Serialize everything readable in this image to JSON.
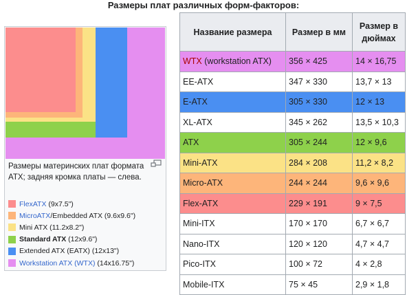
{
  "title": "Размеры плат различных форм-факторов:",
  "colors": {
    "wtx": "#e58ef0",
    "eatx": "#4a8ff2",
    "standard": "#8ed14b",
    "mini": "#fbe286",
    "micro": "#fdb57a",
    "flex": "#fc8d8d"
  },
  "infobox": {
    "caption": "Размеры материнских плат формата ATX; задняя кромка платы — слева.",
    "legend": [
      {
        "link": "FlexATX",
        "rest": " (9x7.5\")",
        "color": "#fc8d8d"
      },
      {
        "link": "MicroATX",
        "rest": "/Embedded ATX (9.6x9.6\")",
        "color": "#fdb57a"
      },
      {
        "link": "",
        "rest": "Mini ATX (11.2x8.2\")",
        "color": "#fbe286"
      },
      {
        "link": "",
        "bold": "Standard ATX",
        "rest": " (12x9.6\")",
        "color": "#8ed14b"
      },
      {
        "link": "",
        "rest": "Extended ATX (EATX) (12x13\")",
        "color": "#4a8ff2"
      },
      {
        "link": "Workstation ATX (WTX)",
        "rest": " (14x16.75\")",
        "color": "#e58ef0"
      }
    ]
  },
  "table": {
    "headers": [
      "Название размера",
      "Размер в мм",
      "Размер в дюймах"
    ],
    "rows": [
      {
        "name": "WTX",
        "name_suffix": " (workstation ATX)",
        "mm": "356 × 425",
        "in": "14 × 16,75",
        "bg": "#e58ef0"
      },
      {
        "name": "EE-ATX",
        "mm": "347 × 330",
        "in": "13,7 × 13",
        "bg": "#ffffff"
      },
      {
        "name": "E-ATX",
        "mm": "305 × 330",
        "in": "12 × 13",
        "bg": "#4a8ff2"
      },
      {
        "name": "XL-ATX",
        "mm": "345 × 262",
        "in": "13,5 × 10,3",
        "bg": "#ffffff"
      },
      {
        "name": "ATX",
        "mm": "305 × 244",
        "in": "12 × 9,6",
        "bg": "#8ed14b"
      },
      {
        "name": "Mini-ATX",
        "mm": "284 × 208",
        "in": "11,2 × 8,2",
        "bg": "#fbe286"
      },
      {
        "name": "Micro-ATX",
        "mm": "244 × 244",
        "in": "9,6 × 9,6",
        "bg": "#fdb57a"
      },
      {
        "name": "Flex-ATX",
        "mm": "229 × 191",
        "in": "9 × 7,5",
        "bg": "#fc8d8d"
      },
      {
        "name": "Mini-ITX",
        "mm": "170 × 170",
        "in": "6,7 × 6,7",
        "bg": "#ffffff"
      },
      {
        "name": "Nano-ITX",
        "mm": "120 × 120",
        "in": "4,7 × 4,7",
        "bg": "#ffffff"
      },
      {
        "name": "Pico-ITX",
        "mm": "100 × 72",
        "in": "4 × 2,8",
        "bg": "#ffffff"
      },
      {
        "name": "Mobile-ITX",
        "mm": "75 × 45",
        "in": "2,9 × 1,8",
        "bg": "#ffffff"
      }
    ]
  }
}
